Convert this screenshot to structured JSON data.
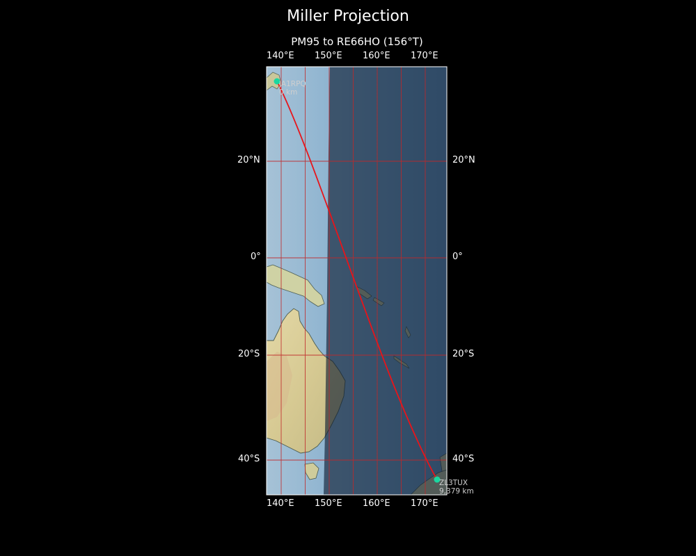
{
  "title": "Miller Projection",
  "subtitle": "PM95 to RE66HO (156°T)",
  "lon_ticks": [
    "140°E",
    "150°E",
    "160°E",
    "170°E"
  ],
  "lat_ticks": [
    "20°N",
    "0°",
    "20°S",
    "40°S"
  ],
  "start": {
    "label": "JA1RPQ",
    "distance": "0 km"
  },
  "end": {
    "label": "ZL3TUX",
    "distance": "9,379 km"
  },
  "colors": {
    "path": "#e8141a",
    "marker": "#1ad7a0",
    "grid": "#c0282a",
    "night_shade": "#0c1a2e",
    "ocean": "#80a9c8",
    "land": "#d9cf97"
  }
}
